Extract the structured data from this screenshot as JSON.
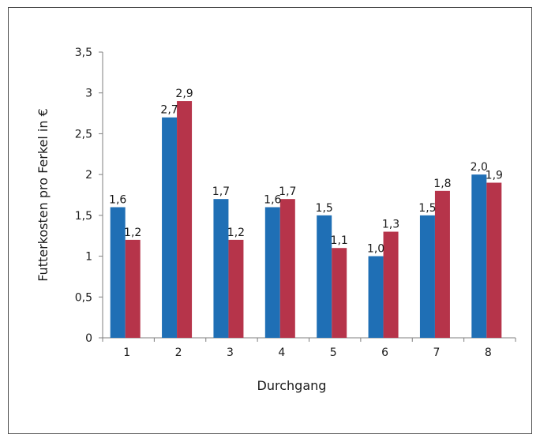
{
  "chart_data": {
    "type": "bar",
    "title": "",
    "xlabel": "Durchgang",
    "ylabel": "Futterkosten pro Ferkel in €",
    "categories": [
      "1",
      "2",
      "3",
      "4",
      "5",
      "6",
      "7",
      "8"
    ],
    "series": [
      {
        "values": [
          1.6,
          2.7,
          1.7,
          1.6,
          1.5,
          1.0,
          1.5,
          2.0
        ],
        "labels": [
          "1,6",
          "2,7",
          "1,7",
          "1,6",
          "1,5",
          "1,0",
          "1,5",
          "2,0"
        ],
        "color": "#1f6fb5"
      },
      {
        "values": [
          1.2,
          2.9,
          1.2,
          1.7,
          1.1,
          1.3,
          1.8,
          1.9
        ],
        "labels": [
          "1,2",
          "2,9",
          "1,2",
          "1,7",
          "1,1",
          "1,3",
          "1,8",
          "1,9"
        ],
        "color": "#b6344a"
      }
    ],
    "yticks": [
      0,
      0.5,
      1,
      1.5,
      2,
      2.5,
      3,
      3.5
    ],
    "ytick_labels": [
      "0",
      "0,5",
      "1",
      "1,5",
      "2",
      "2,5",
      "3",
      "3,5"
    ],
    "ylim": [
      0,
      3.5
    ],
    "grid": false,
    "legend": "none"
  }
}
